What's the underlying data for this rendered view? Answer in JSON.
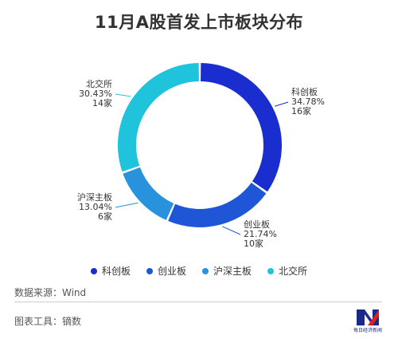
{
  "title": "11月A股首发上市板块分布",
  "chart_data": {
    "type": "pie",
    "donut": true,
    "categories": [
      "科创板",
      "创业板",
      "沪深主板",
      "北交所"
    ],
    "values": [
      34.78,
      21.74,
      13.04,
      30.43
    ],
    "counts": [
      "16家",
      "10家",
      "6家",
      "14家"
    ],
    "percent_labels": [
      "34.78%",
      "21.74%",
      "13.04%",
      "30.43%"
    ],
    "colors": [
      "#1a2ed0",
      "#1f56d8",
      "#2893dc",
      "#1fc3dc"
    ],
    "legend_position": "bottom"
  },
  "footer": {
    "source": "数据来源：Wind",
    "tool": "图表工具：镝数"
  },
  "logo": {
    "icon": "nbd-logo-icon",
    "caption": "每日经济新闻"
  }
}
